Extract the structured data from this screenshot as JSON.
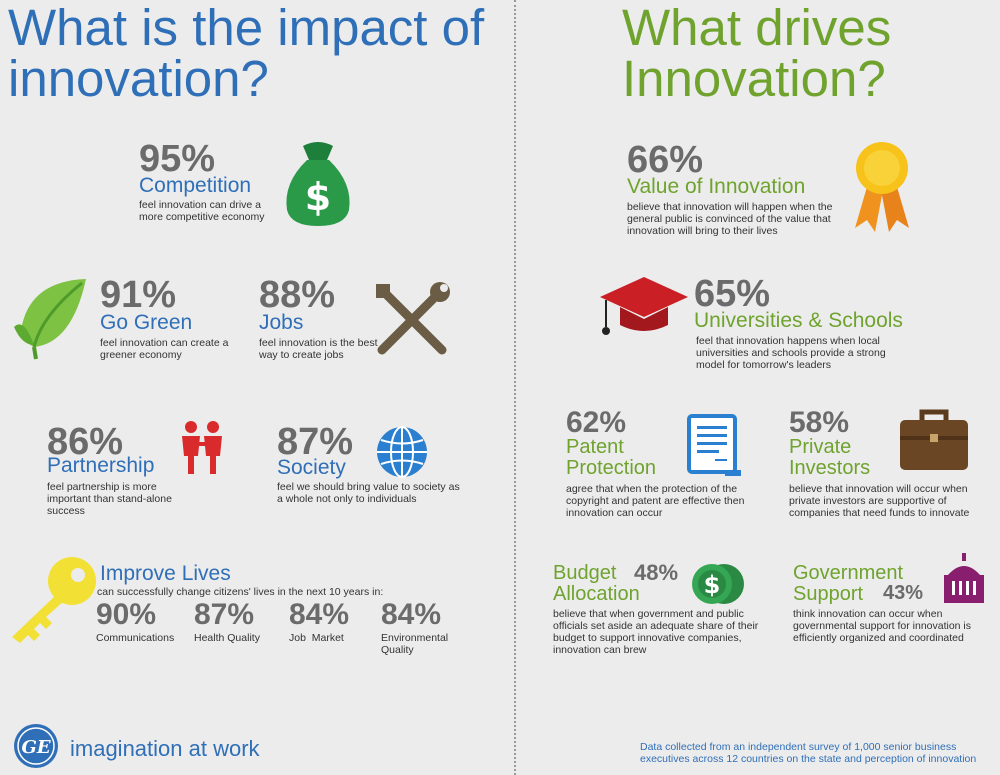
{
  "left": {
    "title": "What is the impact of innovation?",
    "competition": {
      "pct": "95%",
      "label": "Competition",
      "desc": "feel innovation can drive a more competitive economy"
    },
    "go_green": {
      "pct": "91%",
      "label": "Go Green",
      "desc": "feel innovation can create a greener economy"
    },
    "jobs": {
      "pct": "88%",
      "label": "Jobs",
      "desc": "feel innovation is the best way to create jobs"
    },
    "partnership": {
      "pct": "86%",
      "label": "Partnership",
      "desc": "feel partnership is more important than stand-alone success"
    },
    "society": {
      "pct": "87%",
      "label": "Society",
      "desc": "feel we should bring value to society as a whole not only to individuals"
    },
    "improve": {
      "label": "Improve Lives",
      "desc": "can successfully change citizens' lives in the next 10 years in:",
      "items": [
        {
          "pct": "90%",
          "label": "Communications"
        },
        {
          "pct": "87%",
          "label": "Health Quality"
        },
        {
          "pct": "84%",
          "label": "Job  Market"
        },
        {
          "pct": "84%",
          "label": "Environmental Quality"
        }
      ]
    }
  },
  "right": {
    "title": "What drives Innovation?",
    "value": {
      "pct": "66%",
      "label": "Value of Innovation",
      "desc": "believe that innovation will happen when the general public is convinced of the value that innovation will bring to their lives"
    },
    "universities": {
      "pct": "65%",
      "label": "Universities & Schools",
      "desc": "feel that innovation happens when local universities and schools provide a strong model for tomorrow's leaders"
    },
    "patent": {
      "pct": "62%",
      "label": "Patent Protection",
      "desc": "agree that when the protection of the copyright and patent are effective then innovation can occur"
    },
    "private": {
      "pct": "58%",
      "label": "Private Investors",
      "desc": "believe that innovation will occur when private investors are supportive of companies that need funds to innovate"
    },
    "budget": {
      "pct": "48%",
      "label": "Budget Allocation",
      "desc": "believe that when government and public officials set aside an adequate share of their budget to support innovative companies, innovation can brew"
    },
    "government": {
      "pct": "43%",
      "label": "Government Support",
      "desc": "think innovation can occur when governmental support for innovation is efficiently organized and coordinated"
    }
  },
  "footer": {
    "logo_text": "GE",
    "tagline": "imagination at work",
    "note": "Data collected from an independent survey of 1,000 senior business executives across 12 countries on the state and perception of innovation"
  },
  "colors": {
    "blue": "#2f6fb8",
    "green": "#6fa32e",
    "gray": "#6b6b6b"
  }
}
